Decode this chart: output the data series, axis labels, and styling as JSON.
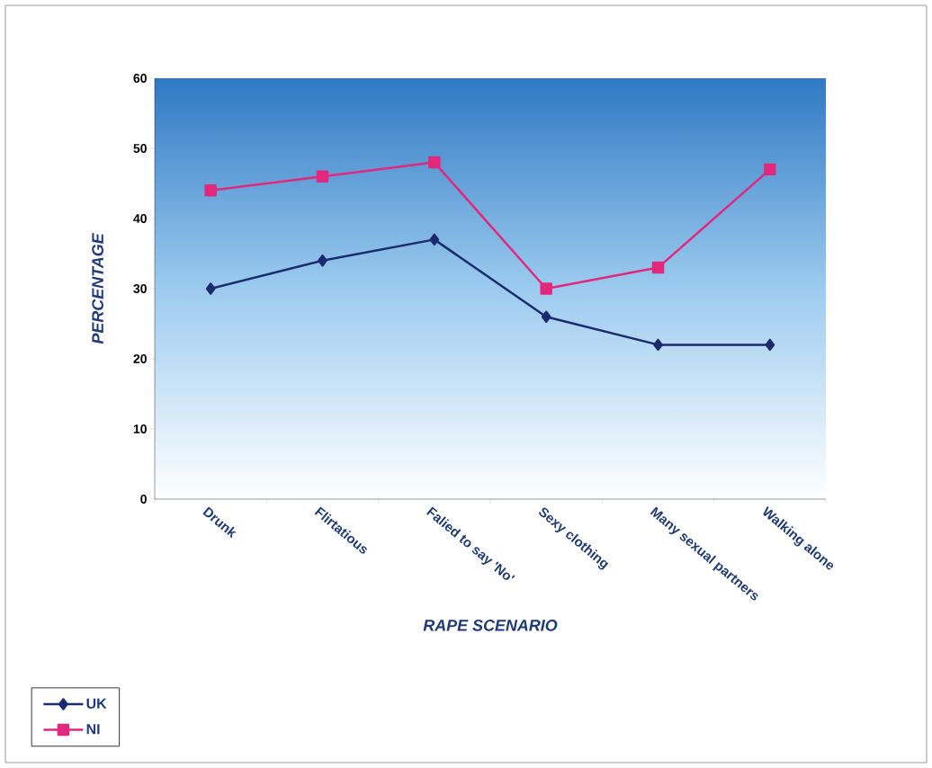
{
  "chart_data": {
    "type": "line",
    "xlabel": "RAPE SCENARIO",
    "ylabel": "PERCENTAGE",
    "categories": [
      "Drunk",
      "Flirtatious",
      "Falied to say 'No'",
      "Sexy clothing",
      "Many sexual partners",
      "Walking alone"
    ],
    "series": [
      {
        "name": "UK",
        "color": "#1c2a6e",
        "marker": "diamond",
        "values": [
          30,
          34,
          37,
          26,
          22,
          22
        ]
      },
      {
        "name": "NI",
        "color": "#e2287c",
        "marker": "square",
        "values": [
          44,
          46,
          48,
          30,
          33,
          47
        ]
      }
    ],
    "ylim": [
      0,
      60
    ],
    "yticks": [
      0,
      10,
      20,
      30,
      40,
      50,
      60
    ],
    "legend": "bottom left",
    "grid": false
  }
}
